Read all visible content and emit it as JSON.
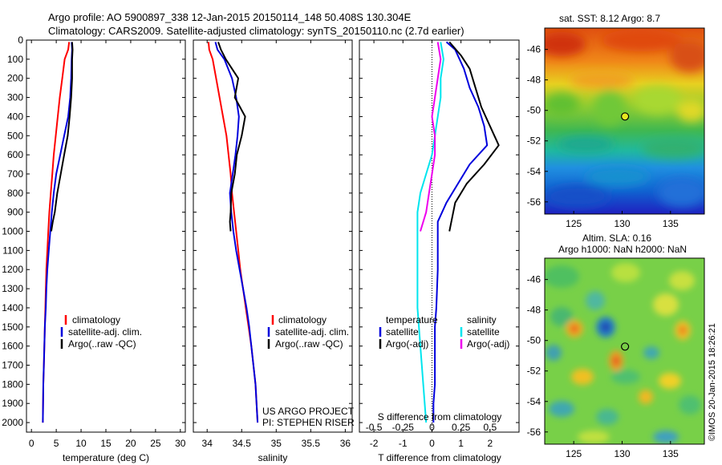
{
  "header": {
    "line1": "Argo profile: AO 5900897_338 12-Jan-2015 20150114_148 50.408S 130.304E",
    "line2": "Climatology: CARS2009. Satellite-adjusted climatology: synTS_20150110.nc (2.7d earlier)"
  },
  "credit": "©IMOS 20-Jan-2015 18:26:21",
  "colors": {
    "climatology": "#ff0000",
    "satellite": "#0000dd",
    "argo": "#000000",
    "satellite_s": "#00e5ee",
    "argo_s": "#ee00ee"
  },
  "chart_data": [
    {
      "id": "temperature",
      "type": "line",
      "xlabel": "temperature (deg C)",
      "ylabel": "",
      "xlim": [
        -1,
        31
      ],
      "ylim": [
        2050,
        0
      ],
      "xticks": [
        0,
        5,
        10,
        15,
        20,
        25,
        30
      ],
      "yticks": [
        0,
        100,
        200,
        300,
        400,
        500,
        600,
        700,
        800,
        900,
        1000,
        1100,
        1200,
        1300,
        1400,
        1500,
        1600,
        1700,
        1800,
        1900,
        2000
      ],
      "legend": [
        "climatology",
        "satellite-adj. clim.",
        "Argo(..raw -QC)"
      ],
      "series": [
        {
          "name": "climatology",
          "color": "#ff0000",
          "x": [
            7.6,
            7.4,
            6.7,
            6.2,
            5.7,
            5.3,
            4.9,
            4.5,
            4.2,
            3.9,
            3.6,
            3.4,
            3.2,
            3.0,
            2.9,
            2.8,
            2.7,
            2.6,
            2.5,
            2.4,
            2.3
          ],
          "y": [
            10,
            50,
            100,
            200,
            300,
            400,
            500,
            600,
            700,
            800,
            900,
            1000,
            1100,
            1200,
            1300,
            1400,
            1500,
            1600,
            1700,
            1800,
            2000
          ]
        },
        {
          "name": "satellite-adj. clim.",
          "color": "#0000dd",
          "x": [
            8.1,
            8.2,
            8.1,
            8.0,
            7.8,
            7.4,
            6.6,
            5.8,
            5.0,
            4.5,
            4.1,
            3.8,
            3.5,
            3.2,
            3.0,
            2.9,
            2.7,
            2.6,
            2.4,
            2.3
          ],
          "y": [
            10,
            50,
            100,
            200,
            300,
            400,
            500,
            600,
            700,
            800,
            900,
            1000,
            1100,
            1200,
            1300,
            1400,
            1500,
            1600,
            1800,
            2000
          ]
        },
        {
          "name": "Argo(..raw -QC)",
          "color": "#000000",
          "x": [
            8.2,
            8.3,
            8.2,
            8.2,
            8.0,
            7.7,
            7.3,
            6.6,
            5.9,
            5.2,
            4.7,
            4.3,
            4.0
          ],
          "y": [
            10,
            50,
            100,
            200,
            300,
            400,
            500,
            600,
            700,
            800,
            900,
            950,
            1000
          ]
        }
      ]
    },
    {
      "id": "salinity",
      "type": "line",
      "xlabel": "salinity",
      "xlim": [
        33.8,
        36.1
      ],
      "ylim": [
        2050,
        0
      ],
      "xticks": [
        34,
        34.5,
        35,
        35.5,
        36
      ],
      "legend": [
        "climatology",
        "satellite-adj. clim.",
        "Argo(..raw -QC)"
      ],
      "annotation": [
        "US ARGO PROJECT",
        "PI: STEPHEN RISER"
      ],
      "series": [
        {
          "name": "climatology",
          "color": "#ff0000",
          "x": [
            34.02,
            34.03,
            34.08,
            34.13,
            34.18,
            34.23,
            34.28,
            34.31,
            34.34,
            34.36,
            34.39,
            34.42,
            34.45,
            34.48,
            34.52,
            34.56,
            34.6,
            34.64,
            34.67,
            34.7,
            34.73
          ],
          "y": [
            10,
            50,
            100,
            200,
            300,
            400,
            500,
            600,
            700,
            800,
            900,
            1000,
            1100,
            1200,
            1300,
            1400,
            1500,
            1600,
            1700,
            1800,
            2000
          ]
        },
        {
          "name": "satellite-adj. clim.",
          "color": "#0000dd",
          "x": [
            34.12,
            34.15,
            34.25,
            34.36,
            34.42,
            34.46,
            34.44,
            34.41,
            34.37,
            34.33,
            34.35,
            34.38,
            34.42,
            34.47,
            34.52,
            34.57,
            34.61,
            34.64,
            34.67,
            34.7,
            34.73
          ],
          "y": [
            10,
            50,
            100,
            200,
            300,
            400,
            500,
            600,
            700,
            800,
            900,
            1000,
            1100,
            1200,
            1300,
            1400,
            1500,
            1600,
            1700,
            1800,
            2000
          ]
        },
        {
          "name": "Argo(..raw -QC)",
          "color": "#000000",
          "x": [
            34.16,
            34.2,
            34.27,
            34.45,
            34.4,
            34.55,
            34.5,
            34.43,
            34.4,
            34.35,
            34.34,
            34.33,
            34.34
          ],
          "y": [
            10,
            50,
            100,
            200,
            300,
            400,
            500,
            600,
            700,
            800,
            900,
            950,
            1000
          ]
        }
      ]
    },
    {
      "id": "difference",
      "type": "line",
      "xlabel": "T difference from climatology",
      "xlabel2": "S difference from climatology",
      "xlim": [
        -2.5,
        3
      ],
      "ylim": [
        2050,
        0
      ],
      "xticks": [
        -2,
        -1,
        0,
        1,
        2
      ],
      "sticks_labels": [
        "-0.5",
        "-0.25",
        "0",
        "0.25",
        "0.5"
      ],
      "sticks_positions": [
        -2,
        -1,
        0,
        1,
        2
      ],
      "legend_t": [
        "temperature",
        "satellite",
        "Argo(-adj)"
      ],
      "legend_s": [
        "salinity",
        "satellite",
        "Argo(-adj)"
      ],
      "series": [
        {
          "name": "satellite",
          "color": "#0000dd",
          "x": [
            0.5,
            0.8,
            1.1,
            1.3,
            1.6,
            1.8,
            1.9,
            1.3,
            0.9,
            0.5,
            0.2,
            0.2,
            0.2,
            0.15,
            0.1,
            0.1,
            0.1,
            0.05,
            0.05
          ],
          "y": [
            10,
            50,
            150,
            250,
            350,
            450,
            550,
            650,
            750,
            850,
            950,
            1100,
            1200,
            1400,
            1500,
            1600,
            1800,
            1900,
            2000
          ]
        },
        {
          "name": "Argo(-adj)",
          "color": "#000000",
          "x": [
            0.6,
            1.0,
            1.3,
            1.5,
            1.7,
            2.0,
            2.3,
            1.8,
            1.2,
            0.8,
            0.6
          ],
          "y": [
            10,
            80,
            150,
            250,
            350,
            450,
            550,
            650,
            750,
            850,
            1000
          ]
        },
        {
          "name": "satellite",
          "color": "#00e5ee",
          "x": [
            0.3,
            0.4,
            0.3,
            0.3,
            0.2,
            0.1,
            0.0,
            -0.2,
            -0.4,
            -0.5,
            -0.5,
            -0.5,
            -0.5,
            -0.4,
            -0.3,
            -0.2
          ],
          "y": [
            10,
            100,
            200,
            300,
            400,
            500,
            600,
            700,
            800,
            900,
            1000,
            1200,
            1400,
            1600,
            1800,
            2000
          ]
        },
        {
          "name": "Argo(-adj)",
          "color": "#ee00ee",
          "x": [
            0.2,
            0.3,
            0.2,
            0.0,
            0.1,
            0.1,
            0.0,
            -0.1,
            -0.2,
            -0.4
          ],
          "y": [
            10,
            100,
            200,
            400,
            500,
            600,
            700,
            800,
            900,
            1000
          ]
        }
      ]
    },
    {
      "id": "sst_map",
      "type": "heatmap",
      "title": "sat. SST: 8.12 Argo: 8.7",
      "xlim": [
        122,
        138.5
      ],
      "ylim": [
        -56.8,
        -44.6
      ],
      "xticks": [
        125,
        130,
        135
      ],
      "yticks": [
        -46,
        -48,
        -50,
        -52,
        -54,
        -56
      ],
      "marker": {
        "lon": 130.3,
        "lat": -50.4
      }
    },
    {
      "id": "sla_map",
      "type": "heatmap",
      "title": "Altim. SLA: 0.16",
      "subtitle": "Argo h1000: NaN h2000: NaN",
      "xlim": [
        122,
        138.5
      ],
      "ylim": [
        -56.8,
        -44.6
      ],
      "xticks": [
        125,
        130,
        135
      ],
      "yticks": [
        -46,
        -48,
        -50,
        -52,
        -54,
        -56
      ],
      "marker": {
        "lon": 130.3,
        "lat": -50.4
      }
    }
  ]
}
